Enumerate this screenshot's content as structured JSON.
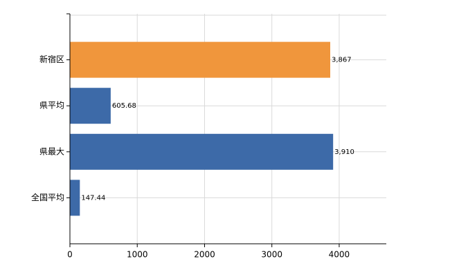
{
  "chart_data": {
    "type": "bar",
    "orientation": "horizontal",
    "categories": [
      "新宿区",
      "県平均",
      "県最大",
      "全国平均"
    ],
    "values": [
      3867,
      605.68,
      3910,
      147.44
    ],
    "value_labels": [
      "3,867",
      "605.68",
      "3,910",
      "147.44"
    ],
    "colors": [
      "#f0963c",
      "#3d6aa8",
      "#3d6aa8",
      "#3d6aa8"
    ],
    "xlim": [
      0,
      4700
    ],
    "xticks": [
      0,
      1000,
      2000,
      3000,
      4000
    ],
    "grid": true
  }
}
